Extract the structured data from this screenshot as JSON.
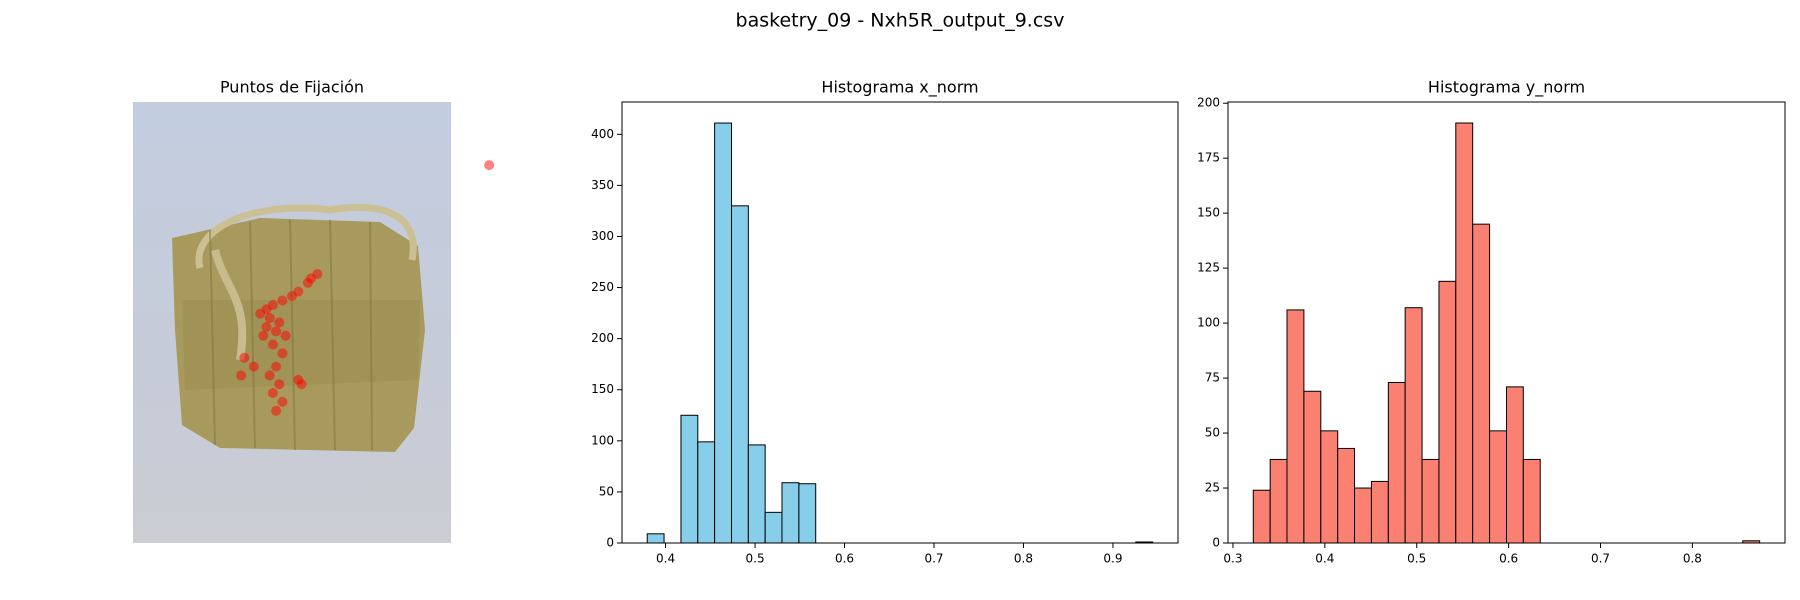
{
  "figure_title": "basketry_09 - Nxh5R_output_9.csv",
  "chart_data": [
    {
      "type": "image-scatter",
      "title": "Puntos de Fijación",
      "color": "#ff0000",
      "xlim": [
        0,
        1
      ],
      "ylim": [
        0,
        1
      ],
      "x": [
        0.56,
        0.58,
        0.55,
        0.52,
        0.5,
        0.47,
        0.44,
        0.42,
        0.4,
        0.43,
        0.46,
        0.45,
        0.48,
        0.44,
        0.47,
        0.45,
        0.43,
        0.46,
        0.44,
        0.47,
        0.45,
        0.52,
        0.53,
        0.35,
        0.34,
        0.38,
        0.42,
        0.41,
        1.12
      ],
      "y": [
        0.4,
        0.39,
        0.41,
        0.43,
        0.44,
        0.45,
        0.46,
        0.47,
        0.48,
        0.49,
        0.5,
        0.52,
        0.53,
        0.55,
        0.57,
        0.6,
        0.62,
        0.64,
        0.66,
        0.68,
        0.7,
        0.63,
        0.64,
        0.58,
        0.62,
        0.6,
        0.51,
        0.53,
        0.143
      ]
    },
    {
      "type": "histogram",
      "title": "Histograma x_norm",
      "color": "#87ceeb",
      "edgecolor": "#000000",
      "bins": [
        0.3795,
        0.3983,
        0.4172,
        0.436,
        0.4548,
        0.4737,
        0.4925,
        0.5113,
        0.5301,
        0.549,
        0.5678,
        0.5866,
        0.6055,
        0.6243,
        0.6431,
        0.662,
        0.6808,
        0.6996,
        0.7184,
        0.7373,
        0.7561,
        0.7749,
        0.7938,
        0.8126,
        0.8314,
        0.8503,
        0.8691,
        0.8879,
        0.9067,
        0.9256,
        0.9444
      ],
      "values": [
        9,
        0,
        125,
        99,
        411,
        330,
        96,
        30,
        59,
        58,
        0,
        0,
        0,
        0,
        0,
        0,
        0,
        0,
        0,
        0,
        0,
        0,
        0,
        0,
        0,
        0,
        0,
        0,
        0,
        1
      ],
      "xlim": [
        0.3513,
        0.9727
      ],
      "xticks": [
        0.4,
        0.5,
        0.6,
        0.7,
        0.8,
        0.9
      ],
      "ylim": [
        0,
        431.6
      ],
      "yticks": [
        0,
        50,
        100,
        150,
        200,
        250,
        300,
        350,
        400
      ]
    },
    {
      "type": "histogram",
      "title": "Histograma y_norm",
      "color": "#fa8072",
      "edgecolor": "#000000",
      "bins": [
        0.3221,
        0.3405,
        0.3588,
        0.3772,
        0.3956,
        0.414,
        0.4323,
        0.4507,
        0.4691,
        0.4874,
        0.5058,
        0.5242,
        0.5425,
        0.5609,
        0.5793,
        0.5977,
        0.616,
        0.6344,
        0.6528,
        0.6711,
        0.6895,
        0.7079,
        0.7262,
        0.7446,
        0.763,
        0.7814,
        0.7997,
        0.8181,
        0.8365,
        0.8548,
        0.8732
      ],
      "values": [
        24,
        38,
        106,
        69,
        51,
        43,
        25,
        28,
        73,
        107,
        38,
        119,
        191,
        145,
        51,
        71,
        38,
        0,
        0,
        0,
        0,
        0,
        0,
        0,
        0,
        0,
        0,
        0,
        0,
        1
      ],
      "xlim": [
        0.2946,
        0.9008
      ],
      "xticks": [
        0.3,
        0.4,
        0.5,
        0.6,
        0.7,
        0.8
      ],
      "ylim": [
        0,
        200.55
      ],
      "yticks": [
        0,
        25,
        50,
        75,
        100,
        125,
        150,
        175,
        200
      ]
    }
  ]
}
